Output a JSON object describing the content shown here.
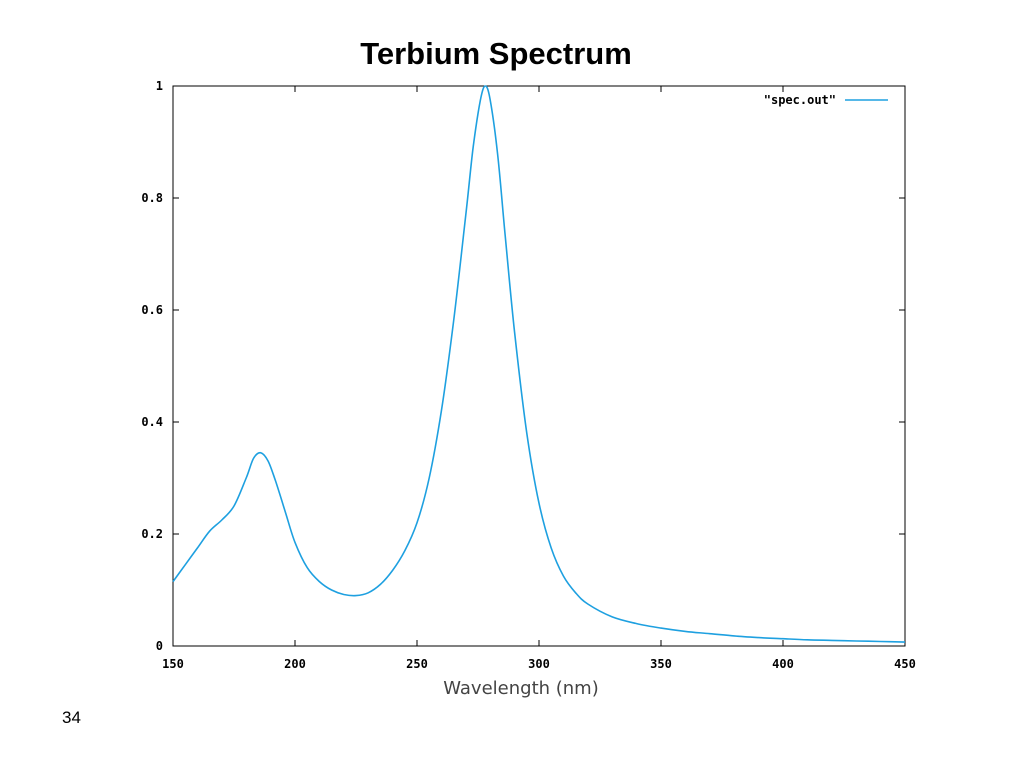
{
  "slide": {
    "title": "Terbium Spectrum",
    "page_number": "34"
  },
  "chart_data": {
    "type": "line",
    "title": "Terbium Spectrum",
    "xlabel": "Wavelength (nm)",
    "ylabel": "",
    "xlim": [
      150,
      450
    ],
    "ylim": [
      0,
      1
    ],
    "x_ticks": [
      150,
      200,
      250,
      300,
      350,
      400,
      450
    ],
    "x_tick_labels": [
      "150",
      "200",
      "250",
      "300",
      "350",
      "400",
      "450"
    ],
    "y_ticks": [
      0,
      0.2,
      0.4,
      0.6,
      0.8,
      1
    ],
    "y_tick_labels": [
      "0",
      "0.2",
      "0.4",
      "0.6",
      "0.8",
      "1"
    ],
    "grid": false,
    "legend_position": "top-right",
    "series_color": "#1ea0e0",
    "series": [
      {
        "name": "\"spec.out\"",
        "x": [
          150,
          155,
          160,
          165,
          170,
          175,
          180,
          183,
          186,
          189,
          192,
          196,
          200,
          205,
          210,
          215,
          220,
          225,
          230,
          235,
          240,
          245,
          250,
          255,
          260,
          265,
          270,
          273,
          276,
          278,
          280,
          283,
          286,
          290,
          295,
          300,
          305,
          310,
          315,
          320,
          330,
          340,
          350,
          360,
          370,
          380,
          390,
          400,
          410,
          420,
          430,
          440,
          450
        ],
        "y": [
          0.115,
          0.145,
          0.175,
          0.205,
          0.225,
          0.25,
          0.3,
          0.335,
          0.345,
          0.33,
          0.295,
          0.24,
          0.185,
          0.14,
          0.115,
          0.1,
          0.092,
          0.09,
          0.095,
          0.11,
          0.135,
          0.17,
          0.22,
          0.3,
          0.42,
          0.58,
          0.77,
          0.89,
          0.975,
          1.0,
          0.975,
          0.88,
          0.74,
          0.56,
          0.38,
          0.255,
          0.175,
          0.125,
          0.095,
          0.075,
          0.052,
          0.04,
          0.032,
          0.026,
          0.022,
          0.018,
          0.015,
          0.013,
          0.011,
          0.01,
          0.009,
          0.008,
          0.007
        ]
      }
    ]
  }
}
